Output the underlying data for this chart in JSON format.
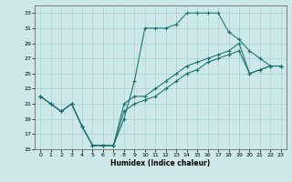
{
  "xlabel": "Humidex (Indice chaleur)",
  "xlim": [
    -0.5,
    23.5
  ],
  "ylim": [
    15,
    34
  ],
  "yticks": [
    15,
    17,
    19,
    21,
    23,
    25,
    27,
    29,
    31,
    33
  ],
  "xticks": [
    0,
    1,
    2,
    3,
    4,
    5,
    6,
    7,
    8,
    9,
    10,
    11,
    12,
    13,
    14,
    15,
    16,
    17,
    18,
    19,
    20,
    21,
    22,
    23
  ],
  "bg_color": "#cce8e8",
  "grid_color": "#aad0d0",
  "line_color": "#1a7070",
  "line1_x": [
    0,
    1,
    2,
    3,
    4,
    5,
    6,
    7,
    8,
    9,
    10,
    11,
    12,
    13,
    14,
    15,
    16,
    17,
    18,
    19,
    20,
    21,
    22,
    23
  ],
  "line1_y": [
    22,
    21,
    20,
    21,
    18,
    15.5,
    15.5,
    15.5,
    19,
    24,
    31,
    31,
    31,
    31.5,
    33,
    33,
    33,
    33,
    30.5,
    29.5,
    28,
    27,
    26,
    26
  ],
  "line2_x": [
    0,
    1,
    2,
    3,
    4,
    5,
    6,
    7,
    8,
    9,
    10,
    11,
    12,
    13,
    14,
    15,
    16,
    17,
    18,
    19,
    20,
    21,
    22,
    23
  ],
  "line2_y": [
    22,
    21,
    20,
    21,
    18,
    15.5,
    15.5,
    15.5,
    21,
    22,
    22,
    23,
    24,
    25,
    26,
    26.5,
    27,
    27.5,
    28,
    29,
    25,
    25.5,
    26,
    26
  ],
  "line3_x": [
    0,
    1,
    2,
    3,
    4,
    5,
    6,
    7,
    8,
    9,
    10,
    11,
    12,
    13,
    14,
    15,
    16,
    17,
    18,
    19,
    20,
    21,
    22,
    23
  ],
  "line3_y": [
    22,
    21,
    20,
    21,
    18,
    15.5,
    15.5,
    15.5,
    20,
    21,
    21.5,
    22,
    23,
    24,
    25,
    25.5,
    26.5,
    27,
    27.5,
    28,
    25,
    25.5,
    26,
    26
  ]
}
